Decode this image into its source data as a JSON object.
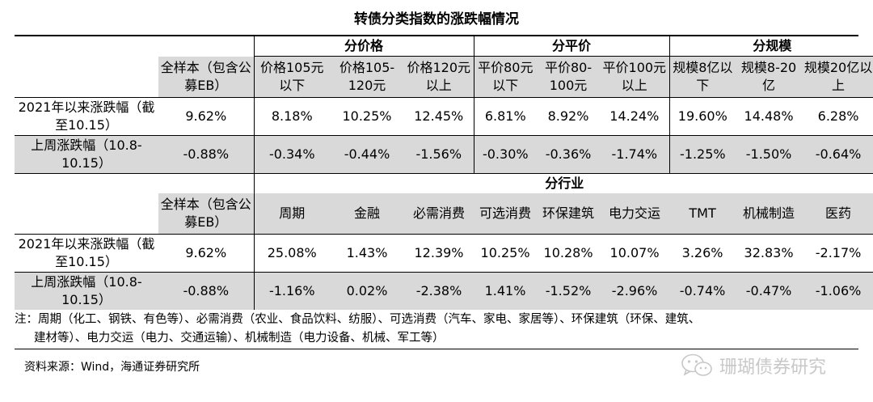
{
  "title": "转债分类指数的涨跌幅情况",
  "groups_top": [
    "分价格",
    "分平价",
    "分规模"
  ],
  "group_bottom": "分行业",
  "top_headers": [
    "全样本（包含公募EB）",
    "价格105元以下",
    "价格105-120元",
    "价格120元以上",
    "平价80元以下",
    "平价80-100元",
    "平价100元以上",
    "规模8亿以下",
    "规模8-20亿",
    "规模20亿以上"
  ],
  "bottom_headers": [
    "全样本（包含公募EB）",
    "周期",
    "金融",
    "必需消费",
    "可选消费",
    "环保建筑",
    "电力交运",
    "TMT",
    "机械制造",
    "医药"
  ],
  "row_labels": [
    "2021年以来涨跌幅（截至10.15）",
    "上周涨跌幅（10.8-10.15）"
  ],
  "top_rows": [
    [
      "9.62%",
      "8.18%",
      "10.25%",
      "12.45%",
      "6.81%",
      "8.92%",
      "14.24%",
      "19.60%",
      "14.48%",
      "6.28%"
    ],
    [
      "-0.88%",
      "-0.34%",
      "-0.44%",
      "-1.56%",
      "-0.30%",
      "-0.36%",
      "-1.74%",
      "-1.25%",
      "-1.50%",
      "-0.64%"
    ]
  ],
  "bottom_rows": [
    [
      "9.62%",
      "25.08%",
      "1.43%",
      "12.39%",
      "10.25%",
      "10.28%",
      "10.07%",
      "3.26%",
      "32.83%",
      "-2.17%"
    ],
    [
      "-0.88%",
      "-1.16%",
      "0.02%",
      "-2.38%",
      "1.41%",
      "-1.52%",
      "-2.96%",
      "-0.74%",
      "-0.47%",
      "-1.06%"
    ]
  ],
  "note_line1": "注：周期（化工、钢铁、有色等）、必需消费（农业、食品饮料、纺服）、可选消费（汽车、家电、家居等）、环保建筑（环保、建筑、",
  "note_line2": "建材等）、电力交运（电力、交通运输）、机械制造（电力设备、机械、军工等）",
  "source": "资料来源：Wind，海通证券研究所",
  "watermark": "珊瑚债券研究"
}
